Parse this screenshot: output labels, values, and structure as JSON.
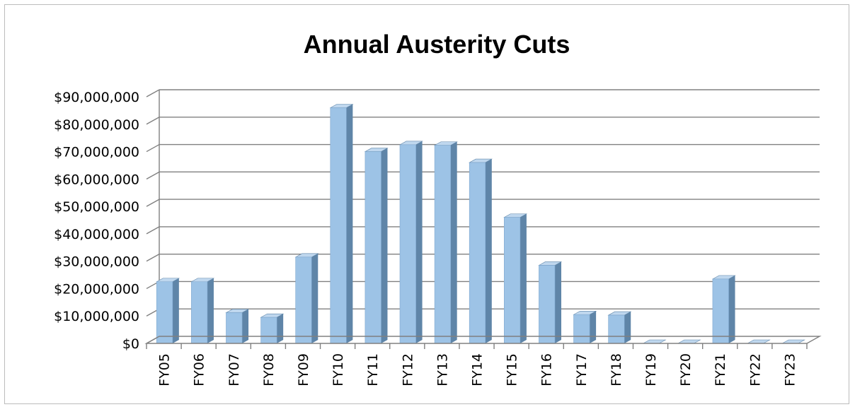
{
  "chart_data": {
    "type": "bar",
    "title": "Annual Austerity Cuts",
    "xlabel": "",
    "ylabel": "",
    "ylim": [
      0,
      90000000
    ],
    "ytick_labels": [
      "$0",
      "$10,000,000",
      "$20,000,000",
      "$30,000,000",
      "$40,000,000",
      "$50,000,000",
      "$60,000,000",
      "$70,000,000",
      "$80,000,000",
      "$90,000,000"
    ],
    "categories": [
      "FY05",
      "FY06",
      "FY07",
      "FY08",
      "FY09",
      "FY10",
      "FY11",
      "FY12",
      "FY13",
      "FY14",
      "FY15",
      "FY16",
      "FY17",
      "FY18",
      "FY19",
      "FY20",
      "FY21",
      "FY22",
      "FY23"
    ],
    "values": [
      22500000,
      22500000,
      11200000,
      9500000,
      31500000,
      86000000,
      70000000,
      72500000,
      72300000,
      66000000,
      46000000,
      28500000,
      10500000,
      10300000,
      0,
      0,
      23500000,
      0,
      0
    ],
    "grid": true,
    "legend": "none",
    "colors": {
      "bar_front": "#9dc3e6",
      "bar_side": "#5f85a8",
      "bar_top": "#bfd7ee",
      "grid": "#808080"
    }
  }
}
